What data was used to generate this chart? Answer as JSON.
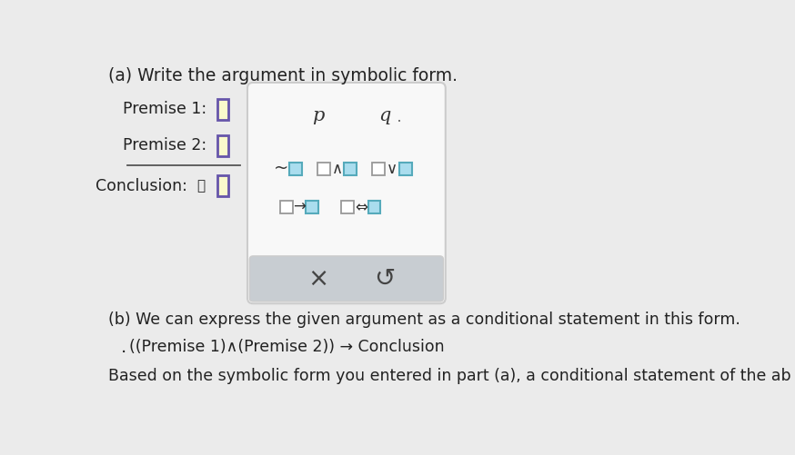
{
  "bg_color": "#ebebeb",
  "panel_bg": "#f8f8f8",
  "panel_border": "#cccccc",
  "bottom_bar_bg": "#c8cdd2",
  "premise_box_border": "#6655aa",
  "premise_box_fill": "#fafacc",
  "blue_box_border": "#55aabb",
  "blue_box_fill": "#aaddee",
  "white_box_border": "#999999",
  "white_box_fill": "#ffffff",
  "title_text": "(a) Write the argument in symbolic form.",
  "premise1_label": "Premise 1:",
  "premise2_label": "Premise 2:",
  "conclusion_label": "Conclusion:",
  "therefore_symbol": "∴",
  "p_label": "p",
  "q_label": "q",
  "not_sym": "~",
  "and_sym": "∧",
  "or_sym": "∨",
  "arrow_sym": "→",
  "biconditional_sym": "⇔",
  "x_btn": "×",
  "undo_btn": "↺",
  "part_b_line1": "(b) We can express the given argument as a conditional statement in this form.",
  "part_b_formula": "   ((Premise 1)∧(Premise 2)) → Conclusion",
  "part_b_line3": "Based on the symbolic form you entered in part (a), a conditional statement of the ab",
  "text_color": "#222222"
}
